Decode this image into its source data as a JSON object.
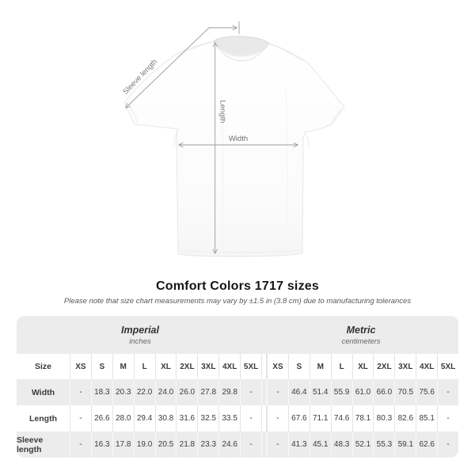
{
  "title": "Comfort Colors 1717 sizes",
  "subtitle": "Please note that size chart measurements may vary by ±1.5 in (3.8 cm) due to manufacturing tolerances",
  "diagram": {
    "labels": {
      "sleeve_length": "Sleeve length",
      "length": "Length",
      "width": "Width"
    }
  },
  "table": {
    "sections": [
      {
        "label": "Imperial",
        "sublabel": "inches"
      },
      {
        "label": "Metric",
        "sublabel": "centimeters"
      }
    ],
    "size_header": "Size",
    "sizes": [
      "XS",
      "S",
      "M",
      "L",
      "XL",
      "2XL",
      "3XL",
      "4XL",
      "5XL"
    ],
    "rows": [
      {
        "label": "Width",
        "imperial": [
          "-",
          "18.3",
          "20.3",
          "22.0",
          "24.0",
          "26.0",
          "27.8",
          "29.8",
          "-"
        ],
        "metric": [
          "-",
          "46.4",
          "51.4",
          "55.9",
          "61.0",
          "66.0",
          "70.5",
          "75.6",
          "-"
        ]
      },
      {
        "label": "Length",
        "imperial": [
          "-",
          "26.6",
          "28.0",
          "29.4",
          "30.8",
          "31.6",
          "32.5",
          "33.5",
          "-"
        ],
        "metric": [
          "-",
          "67.6",
          "71.1",
          "74.6",
          "78.1",
          "80.3",
          "82.6",
          "85.1",
          "-"
        ]
      },
      {
        "label": "Sleeve length",
        "imperial": [
          "-",
          "16.3",
          "17.8",
          "19.0",
          "20.5",
          "21.8",
          "23.3",
          "24.6",
          "-"
        ],
        "metric": [
          "-",
          "41.3",
          "45.1",
          "48.3",
          "52.1",
          "55.3",
          "59.1",
          "62.6",
          "-"
        ]
      }
    ]
  },
  "colors": {
    "table_band": "#ececec",
    "row_alt": "#ececec",
    "separator": "#e4e4e4",
    "arrow": "#9b9b9b",
    "diagram_label": "#7a7a7a",
    "title_text": "#151515",
    "table_text": "#3d3d3d"
  }
}
